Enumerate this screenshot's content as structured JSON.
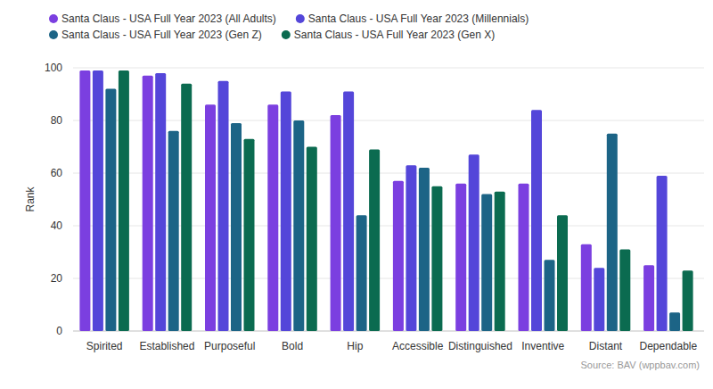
{
  "chart_data": {
    "type": "bar",
    "y_label": "Rank",
    "source": "Source: BAV (wppbav.com)",
    "categories": [
      "Spirited",
      "Established",
      "Purposeful",
      "Bold",
      "Hip",
      "Accessible",
      "Distinguished",
      "Inventive",
      "Distant",
      "Dependable"
    ],
    "series": [
      {
        "name": "Santa Claus - USA Full Year 2023 (All Adults)",
        "color": "#7b3fe0",
        "values": [
          99,
          97,
          86,
          86,
          82,
          57,
          56,
          56,
          33,
          25
        ]
      },
      {
        "name": "Santa Claus - USA Full Year 2023 (Millennials)",
        "color": "#5446d9",
        "values": [
          99,
          98,
          95,
          91,
          91,
          63,
          67,
          84,
          24,
          59
        ]
      },
      {
        "name": "Santa Claus - USA Full Year 2023 (Gen Z)",
        "color": "#1c6486",
        "values": [
          92,
          76,
          79,
          80,
          44,
          62,
          52,
          27,
          75,
          7
        ]
      },
      {
        "name": "Santa Claus - USA Full Year 2023 (Gen X)",
        "color": "#0b6b50",
        "values": [
          99,
          94,
          73,
          70,
          69,
          55,
          53,
          44,
          31,
          23
        ]
      }
    ],
    "ylim": [
      0,
      100
    ],
    "yticks": [
      0,
      20,
      40,
      60,
      80,
      100
    ],
    "grid": true,
    "legend": "top"
  }
}
